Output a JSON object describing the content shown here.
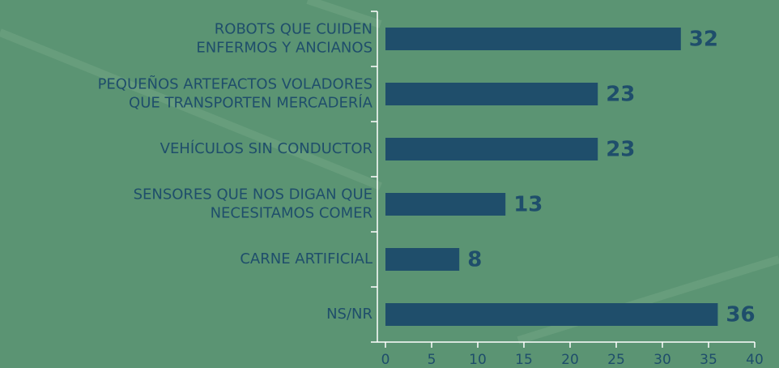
{
  "chart_data": {
    "type": "barh",
    "categories": [
      [
        "ROBOTS QUE CUIDEN",
        "ENFERMOS Y ANCIANOS"
      ],
      [
        "PEQUEÑOS ARTEFACTOS VOLADORES",
        "QUE TRANSPORTEN MERCADERÍA"
      ],
      [
        "VEHÍCULOS SIN CONDUCTOR"
      ],
      [
        "SENSORES QUE NOS DIGAN QUE",
        "NECESITAMOS COMER"
      ],
      [
        "CARNE ARTIFICIAL"
      ],
      [
        "NS/NR"
      ]
    ],
    "values": [
      32,
      23,
      23,
      13,
      8,
      36
    ],
    "color": "#1f4e6b",
    "xlim": [
      0,
      40
    ],
    "xticks": [
      0,
      5,
      10,
      15,
      20,
      25,
      30,
      35,
      40
    ]
  }
}
